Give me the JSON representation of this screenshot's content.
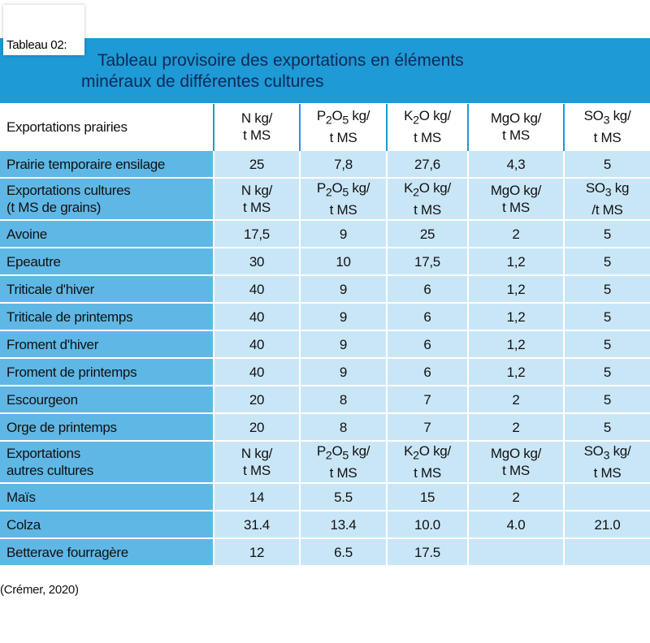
{
  "tag": "Tableau 02:",
  "title_line1": "Tableau provisoire des exportations en éléments",
  "title_line2": "minéraux de différentes cultures",
  "header": {
    "label": "Exportations prairies",
    "units": [
      "N kg/\nt MS",
      "P2O5 kg/\nt MS",
      "K2O kg/\nt MS",
      "MgO kg/\nt MS",
      "SO3 kg/\nt MS"
    ]
  },
  "rows": [
    {
      "label": "Prairie temporaire ensilage",
      "values": [
        "25",
        "7,8",
        "27,6",
        "4,3",
        "5"
      ]
    }
  ],
  "sub1": {
    "label": "Exportations cultures\n(t MS de grains)",
    "units": [
      "N kg/\nt MS",
      "P2O5 kg/\nt MS",
      "K2O kg/\nt MS",
      "MgO kg/\nt MS",
      "SO3 kg\n/t MS"
    ]
  },
  "rows2": [
    {
      "label": "Avoine",
      "values": [
        "17,5",
        "9",
        "25",
        "2",
        "5"
      ]
    },
    {
      "label": "Epeautre",
      "values": [
        "30",
        "10",
        "17,5",
        "1,2",
        "5"
      ]
    },
    {
      "label": "Triticale d'hiver",
      "values": [
        "40",
        "9",
        "6",
        "1,2",
        "5"
      ]
    },
    {
      "label": "Triticale de printemps",
      "values": [
        "40",
        "9",
        "6",
        "1,2",
        "5"
      ]
    },
    {
      "label": "Froment d'hiver",
      "values": [
        "40",
        "9",
        "6",
        "1,2",
        "5"
      ]
    },
    {
      "label": "Froment de printemps",
      "values": [
        "40",
        "9",
        "6",
        "1,2",
        "5"
      ]
    },
    {
      "label": "Escourgeon",
      "values": [
        "20",
        "8",
        "7",
        "2",
        "5"
      ]
    },
    {
      "label": "Orge de printemps",
      "values": [
        "20",
        "8",
        "7",
        "2",
        "5"
      ]
    }
  ],
  "sub2": {
    "label": "Exportations\nautres cultures",
    "units": [
      "N kg/\nt MS",
      "P2O5 kg/\nt MS",
      "K2O kg/\nt MS",
      "MgO kg/\nt MS",
      "SO3 kg/\nt MS"
    ]
  },
  "rows3": [
    {
      "label": "Maïs",
      "values": [
        "14",
        "5.5",
        "15",
        "2",
        ""
      ]
    },
    {
      "label": "Colza",
      "values": [
        "31.4",
        "13.4",
        "10.0",
        "4.0",
        "21.0"
      ]
    },
    {
      "label": "Betterave fourragère",
      "values": [
        "12",
        "6.5",
        "17.5",
        "",
        ""
      ]
    }
  ],
  "source": "(Crémer, 2020)",
  "colors": {
    "band": "#1e9ad6",
    "label_cell": "#5fb7e5",
    "value_cell": "#c9e6f7",
    "title": "#0f2a55"
  }
}
